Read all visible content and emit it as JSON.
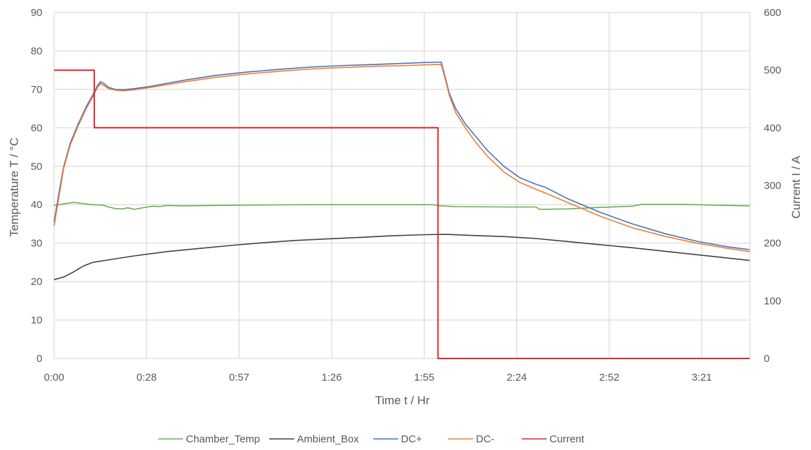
{
  "chart_data": {
    "type": "line",
    "title": "",
    "xlabel": "Time t / Hr",
    "ylabel": "Temperature T / °C",
    "y2label": "Current I / A",
    "x_ticks": [
      "0:00",
      "0:28",
      "0:57",
      "1:26",
      "1:55",
      "2:24",
      "2:52",
      "3:21"
    ],
    "x_tick_minutes": [
      0,
      28.8,
      57.6,
      86.4,
      115.2,
      144,
      172.8,
      201.6
    ],
    "xlim_minutes": [
      0,
      216.6
    ],
    "ylim": [
      0,
      90
    ],
    "y_ticks": [
      0,
      10,
      20,
      30,
      40,
      50,
      60,
      70,
      80,
      90
    ],
    "y2lim": [
      0,
      600
    ],
    "y2_ticks": [
      0,
      100,
      200,
      300,
      400,
      500,
      600
    ],
    "grid": true,
    "legend_position": "bottom",
    "series": [
      {
        "name": "Chamber_Temp",
        "axis": "left",
        "color": "#70ad47",
        "points": [
          [
            0,
            39.8
          ],
          [
            3,
            40.2
          ],
          [
            6,
            40.6
          ],
          [
            9,
            40.3
          ],
          [
            12,
            40
          ],
          [
            15,
            39.9
          ],
          [
            17,
            39.4
          ],
          [
            19,
            39.0
          ],
          [
            21,
            38.9
          ],
          [
            23,
            39.2
          ],
          [
            25,
            38.8
          ],
          [
            27,
            39.1
          ],
          [
            29,
            39.4
          ],
          [
            31,
            39.6
          ],
          [
            33,
            39.5
          ],
          [
            35,
            39.8
          ],
          [
            40,
            39.7
          ],
          [
            50,
            39.8
          ],
          [
            60,
            39.9
          ],
          [
            80,
            40.0
          ],
          [
            100,
            40.0
          ],
          [
            118,
            40.0
          ],
          [
            120,
            39.7
          ],
          [
            125,
            39.5
          ],
          [
            140,
            39.4
          ],
          [
            150,
            39.4
          ],
          [
            151,
            38.8
          ],
          [
            160,
            38.9
          ],
          [
            170,
            39.3
          ],
          [
            180,
            39.6
          ],
          [
            183,
            40.1
          ],
          [
            195,
            40.1
          ],
          [
            205,
            39.9
          ],
          [
            216.5,
            39.7
          ]
        ]
      },
      {
        "name": "Ambient_Box",
        "axis": "left",
        "color": "#404040",
        "points": [
          [
            0,
            20.5
          ],
          [
            3,
            21.2
          ],
          [
            6,
            22.5
          ],
          [
            9,
            24.0
          ],
          [
            12,
            25.0
          ],
          [
            18,
            25.8
          ],
          [
            25,
            26.7
          ],
          [
            35,
            27.8
          ],
          [
            45,
            28.6
          ],
          [
            55,
            29.4
          ],
          [
            65,
            30.1
          ],
          [
            75,
            30.7
          ],
          [
            85,
            31.1
          ],
          [
            95,
            31.5
          ],
          [
            105,
            31.9
          ],
          [
            115,
            32.2
          ],
          [
            122,
            32.3
          ],
          [
            130,
            32.0
          ],
          [
            140,
            31.7
          ],
          [
            150,
            31.2
          ],
          [
            160,
            30.4
          ],
          [
            170,
            29.6
          ],
          [
            180,
            28.8
          ],
          [
            190,
            27.9
          ],
          [
            200,
            27.0
          ],
          [
            210,
            26.1
          ],
          [
            216.5,
            25.5
          ]
        ]
      },
      {
        "name": "DC+",
        "axis": "left",
        "color": "#4472c4",
        "points": [
          [
            0,
            35.5
          ],
          [
            1.5,
            43
          ],
          [
            3,
            50
          ],
          [
            5,
            56
          ],
          [
            7.5,
            61
          ],
          [
            10,
            65.5
          ],
          [
            12,
            68.5
          ],
          [
            13.5,
            71
          ],
          [
            14.5,
            72
          ],
          [
            15.5,
            71.5
          ],
          [
            17,
            70.5
          ],
          [
            19,
            70
          ],
          [
            21.5,
            69.9
          ],
          [
            25,
            70.2
          ],
          [
            30,
            70.8
          ],
          [
            40,
            72.3
          ],
          [
            50,
            73.6
          ],
          [
            60,
            74.5
          ],
          [
            70,
            75.2
          ],
          [
            80,
            75.8
          ],
          [
            90,
            76.2
          ],
          [
            100,
            76.5
          ],
          [
            110,
            76.8
          ],
          [
            116,
            77
          ],
          [
            120.5,
            77.1
          ],
          [
            121.5,
            74
          ],
          [
            123,
            69
          ],
          [
            125,
            65
          ],
          [
            128,
            61
          ],
          [
            131,
            58
          ],
          [
            135,
            54
          ],
          [
            140,
            50
          ],
          [
            145,
            47
          ],
          [
            150,
            45.3
          ],
          [
            153,
            44.5
          ],
          [
            160,
            41.5
          ],
          [
            170,
            38
          ],
          [
            180,
            35
          ],
          [
            190,
            32.5
          ],
          [
            200,
            30.5
          ],
          [
            210,
            29
          ],
          [
            216.5,
            28.3
          ]
        ]
      },
      {
        "name": "DC-",
        "axis": "left",
        "color": "#ed7d31",
        "points": [
          [
            0,
            34.5
          ],
          [
            1.5,
            42
          ],
          [
            3,
            49.5
          ],
          [
            5,
            55.5
          ],
          [
            7.5,
            60.5
          ],
          [
            10,
            65
          ],
          [
            12,
            68
          ],
          [
            13.5,
            70.5
          ],
          [
            14.5,
            71.5
          ],
          [
            15.5,
            71
          ],
          [
            17,
            70.2
          ],
          [
            19,
            69.8
          ],
          [
            21.5,
            69.6
          ],
          [
            25,
            69.9
          ],
          [
            30,
            70.5
          ],
          [
            40,
            71.9
          ],
          [
            50,
            73.1
          ],
          [
            60,
            74.0
          ],
          [
            70,
            74.7
          ],
          [
            80,
            75.3
          ],
          [
            90,
            75.7
          ],
          [
            100,
            76.0
          ],
          [
            110,
            76.2
          ],
          [
            116,
            76.4
          ],
          [
            120.5,
            76.5
          ],
          [
            121.5,
            73.5
          ],
          [
            123,
            68.5
          ],
          [
            125,
            64
          ],
          [
            128,
            60
          ],
          [
            131,
            56.5
          ],
          [
            135,
            52.5
          ],
          [
            140,
            48.5
          ],
          [
            145,
            45.8
          ],
          [
            150,
            44
          ],
          [
            153,
            43
          ],
          [
            160,
            40.5
          ],
          [
            170,
            37
          ],
          [
            180,
            34
          ],
          [
            190,
            31.8
          ],
          [
            200,
            30
          ],
          [
            210,
            28.6
          ],
          [
            216.5,
            27.8
          ]
        ]
      },
      {
        "name": "Current",
        "axis": "right",
        "color": "#e3242b",
        "points": [
          [
            0,
            500
          ],
          [
            12.5,
            500
          ],
          [
            12.5,
            400
          ],
          [
            119.5,
            400
          ],
          [
            119.5,
            0
          ],
          [
            216.5,
            0
          ]
        ]
      }
    ]
  }
}
